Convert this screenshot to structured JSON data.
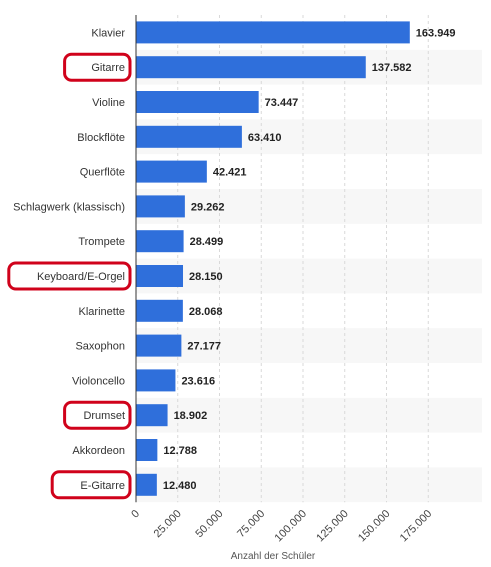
{
  "chart_data": {
    "type": "bar",
    "orientation": "horizontal",
    "categories": [
      "Klavier",
      "Gitarre",
      "Violine",
      "Blockflöte",
      "Querflöte",
      "Schlagwerk (klassisch)",
      "Trompete",
      "Keyboard/E-Orgel",
      "Klarinette",
      "Saxophon",
      "Violoncello",
      "Drumset",
      "Akkordeon",
      "E-Gitarre"
    ],
    "values": [
      163949,
      137582,
      73447,
      63410,
      42421,
      29262,
      28499,
      28150,
      28068,
      27177,
      23616,
      18902,
      12788,
      12480
    ],
    "value_labels": [
      "163.949",
      "137.582",
      "73.447",
      "63.410",
      "42.421",
      "29.262",
      "28.499",
      "28.150",
      "28.068",
      "27.177",
      "23.616",
      "18.902",
      "12.788",
      "12.480"
    ],
    "xlabel": "Anzahl der Schüler",
    "xlim": [
      0,
      200000
    ],
    "xticks": [
      0,
      25000,
      50000,
      75000,
      100000,
      125000,
      150000,
      175000
    ],
    "xtick_labels": [
      "0",
      "25.000",
      "50.000",
      "75.000",
      "100.000",
      "125.000",
      "150.000",
      "175.000"
    ],
    "grid": "vertical dashed",
    "highlighted_categories": [
      "Gitarre",
      "Keyboard/E-Orgel",
      "Drumset",
      "E-Gitarre"
    ]
  },
  "colors": {
    "bar": "#2f6fdb",
    "highlight": "#d0021b",
    "stripe": "#f7f7f7",
    "grid": "#d9d9d9",
    "axis": "#333333"
  }
}
